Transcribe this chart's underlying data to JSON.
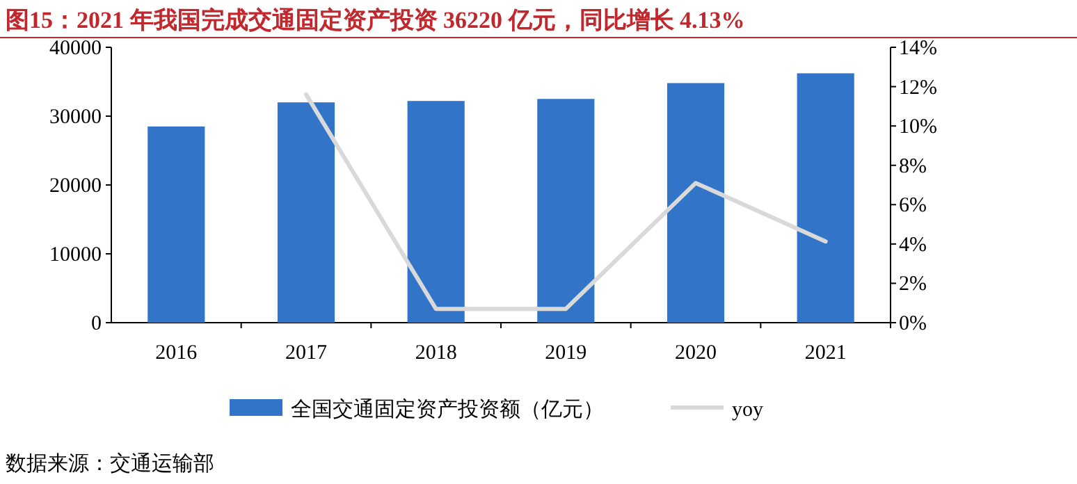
{
  "chart_data": {
    "type": "bar",
    "title": "图15：2021 年我国完成交通固定资产投资 36220 亿元，同比增长 4.13%",
    "categories": [
      "2016",
      "2017",
      "2018",
      "2019",
      "2020",
      "2021"
    ],
    "series": [
      {
        "name": "全国交通固定资产投资额（亿元）",
        "color": "#3275c8",
        "values": [
          28500,
          32000,
          32200,
          32500,
          34800,
          36220
        ]
      },
      {
        "name": "yoy",
        "type": "line",
        "axis": "y2",
        "color": "#d9d9d9",
        "values": [
          null,
          11.6,
          0.7,
          0.7,
          7.1,
          4.13
        ]
      }
    ],
    "ylim": [
      0,
      40000
    ],
    "yticks": [
      0,
      10000,
      20000,
      30000,
      40000
    ],
    "y2lim": [
      0,
      14
    ],
    "y2ticks": [
      {
        "value": 0,
        "label": "0%"
      },
      {
        "value": 2,
        "label": "2%"
      },
      {
        "value": 4,
        "label": "4%"
      },
      {
        "value": 6,
        "label": "6%"
      },
      {
        "value": 8,
        "label": "8%"
      },
      {
        "value": 10,
        "label": "10%"
      },
      {
        "value": 12,
        "label": "12%"
      },
      {
        "value": 14,
        "label": "14%"
      }
    ],
    "legend": "bottom",
    "grid": false,
    "marker": "none",
    "line_style": "solid",
    "annotations": [
      "数据来源：交通运输部"
    ]
  }
}
